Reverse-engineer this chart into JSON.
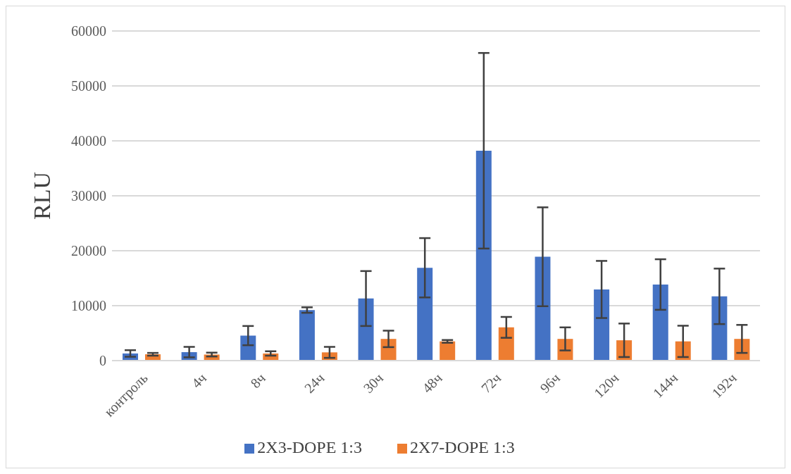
{
  "chart_data": {
    "type": "bar",
    "ylabel": "RLU",
    "categories": [
      "контроль",
      "4ч",
      "8ч",
      "24ч",
      "30ч",
      "48ч",
      "72ч",
      "96ч",
      "120ч",
      "144ч",
      "192ч"
    ],
    "series": [
      {
        "name": "2X3-DOPE 1:3",
        "color": "#4472c4",
        "values": [
          1300,
          1550,
          4550,
          9200,
          11300,
          16900,
          38200,
          18900,
          12950,
          13850,
          11700
        ],
        "errors": [
          600,
          950,
          1750,
          500,
          5000,
          5400,
          17800,
          9000,
          5200,
          4600,
          5050
        ]
      },
      {
        "name": "2X7-DOPE 1:3",
        "color": "#ed7d31",
        "values": [
          1150,
          1100,
          1300,
          1500,
          3950,
          3500,
          6050,
          3950,
          3700,
          3500,
          3950
        ],
        "errors": [
          250,
          350,
          400,
          1000,
          1500,
          250,
          1900,
          2100,
          3050,
          2850,
          2550
        ]
      }
    ],
    "ylim": [
      0,
      60000
    ],
    "yticks": [
      0,
      10000,
      20000,
      30000,
      40000,
      50000,
      60000
    ],
    "grid": "y",
    "legend": "bottom"
  }
}
